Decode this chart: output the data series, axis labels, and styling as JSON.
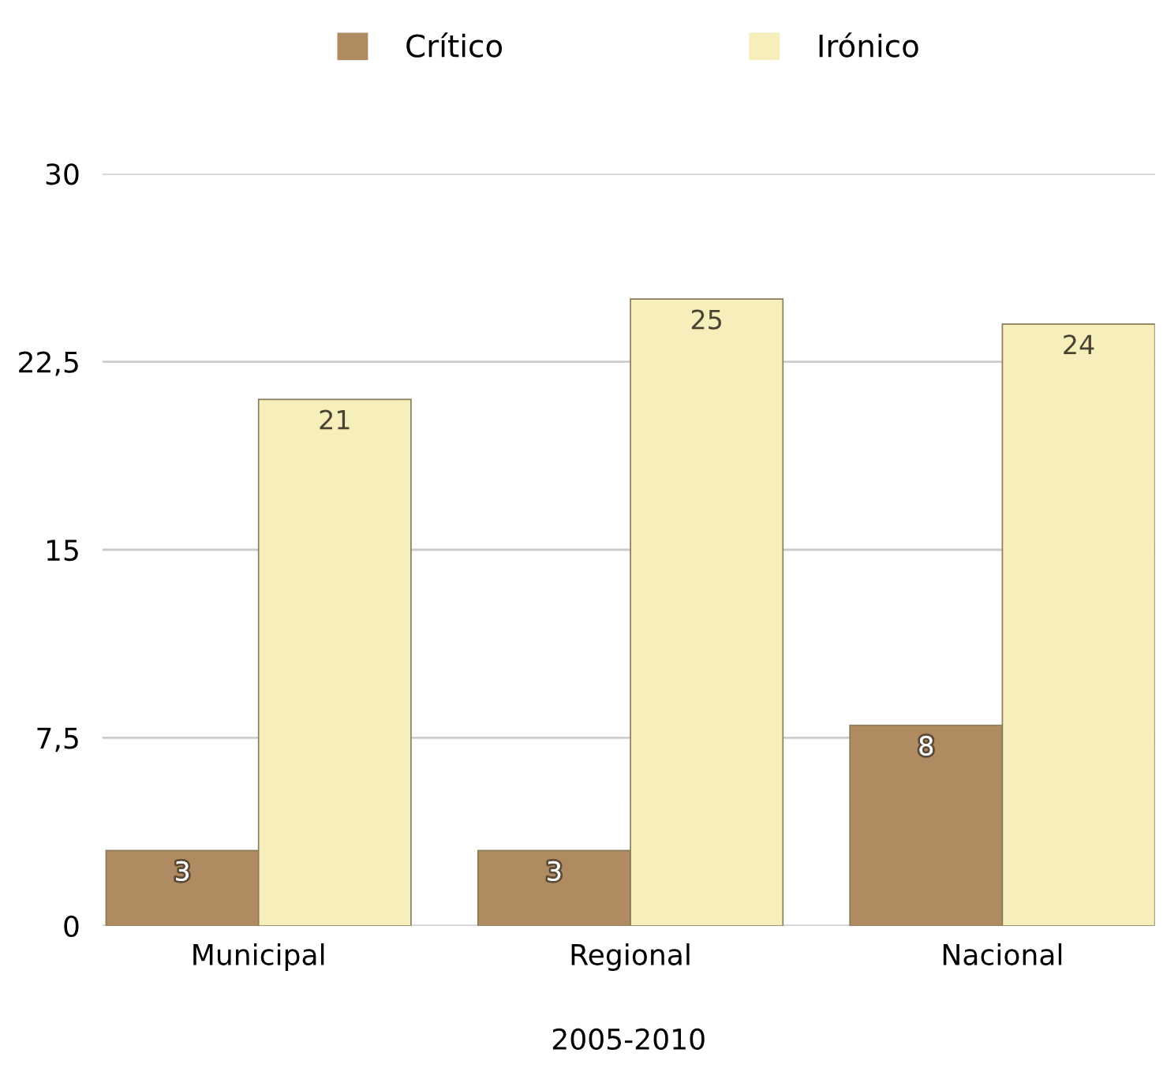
{
  "chart_data": {
    "type": "bar",
    "xlabel": "2005-2010",
    "categories": [
      "Municipal",
      "Regional",
      "Nacional"
    ],
    "series": [
      {
        "name": "Crítico",
        "color": "#b08a60",
        "values": [
          3,
          3,
          8
        ]
      },
      {
        "name": "Irónico",
        "color": "#f6eebb",
        "values": [
          21,
          25,
          24
        ]
      }
    ],
    "ylim": [
      0,
      30
    ],
    "yticks": [
      0,
      {
        "value": 7.5,
        "label": "7,5"
      },
      15,
      {
        "value": 22.5,
        "label": "22,5"
      },
      30
    ],
    "grid": "y",
    "legend": "top",
    "data_labels": true
  }
}
